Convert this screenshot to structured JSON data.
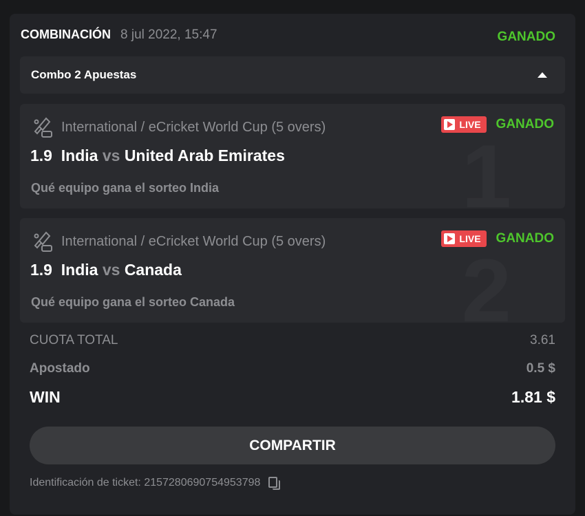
{
  "header": {
    "title": "COMBINACIÓN",
    "date": "8 jul 2022, 15:47",
    "status": "GANADO"
  },
  "combo": {
    "label": "Combo 2 Apuestas"
  },
  "bets": [
    {
      "index": "1",
      "league": "International / eCricket World Cup (5 overs)",
      "live": "LIVE",
      "status": "GANADO",
      "odds": "1.9",
      "home": "India",
      "vs": "vs",
      "away": "United Arab Emirates",
      "selection": "Qué equipo gana el sorteo India"
    },
    {
      "index": "2",
      "league": "International / eCricket World Cup (5 overs)",
      "live": "LIVE",
      "status": "GANADO",
      "odds": "1.9",
      "home": "India",
      "vs": "vs",
      "away": "Canada",
      "selection": "Qué equipo gana el sorteo Canada"
    }
  ],
  "summary": {
    "total_odds_label": "CUOTA TOTAL",
    "total_odds": "3.61",
    "staked_label": "Apostado",
    "staked": "0.5 $",
    "win_label": "WIN",
    "win": "1.81 $"
  },
  "share_label": "COMPARTIR",
  "ticket": {
    "label": "Identificación de ticket: 2157280690754953798"
  },
  "colors": {
    "won": "#4ec62c",
    "live": "#e8474b"
  }
}
